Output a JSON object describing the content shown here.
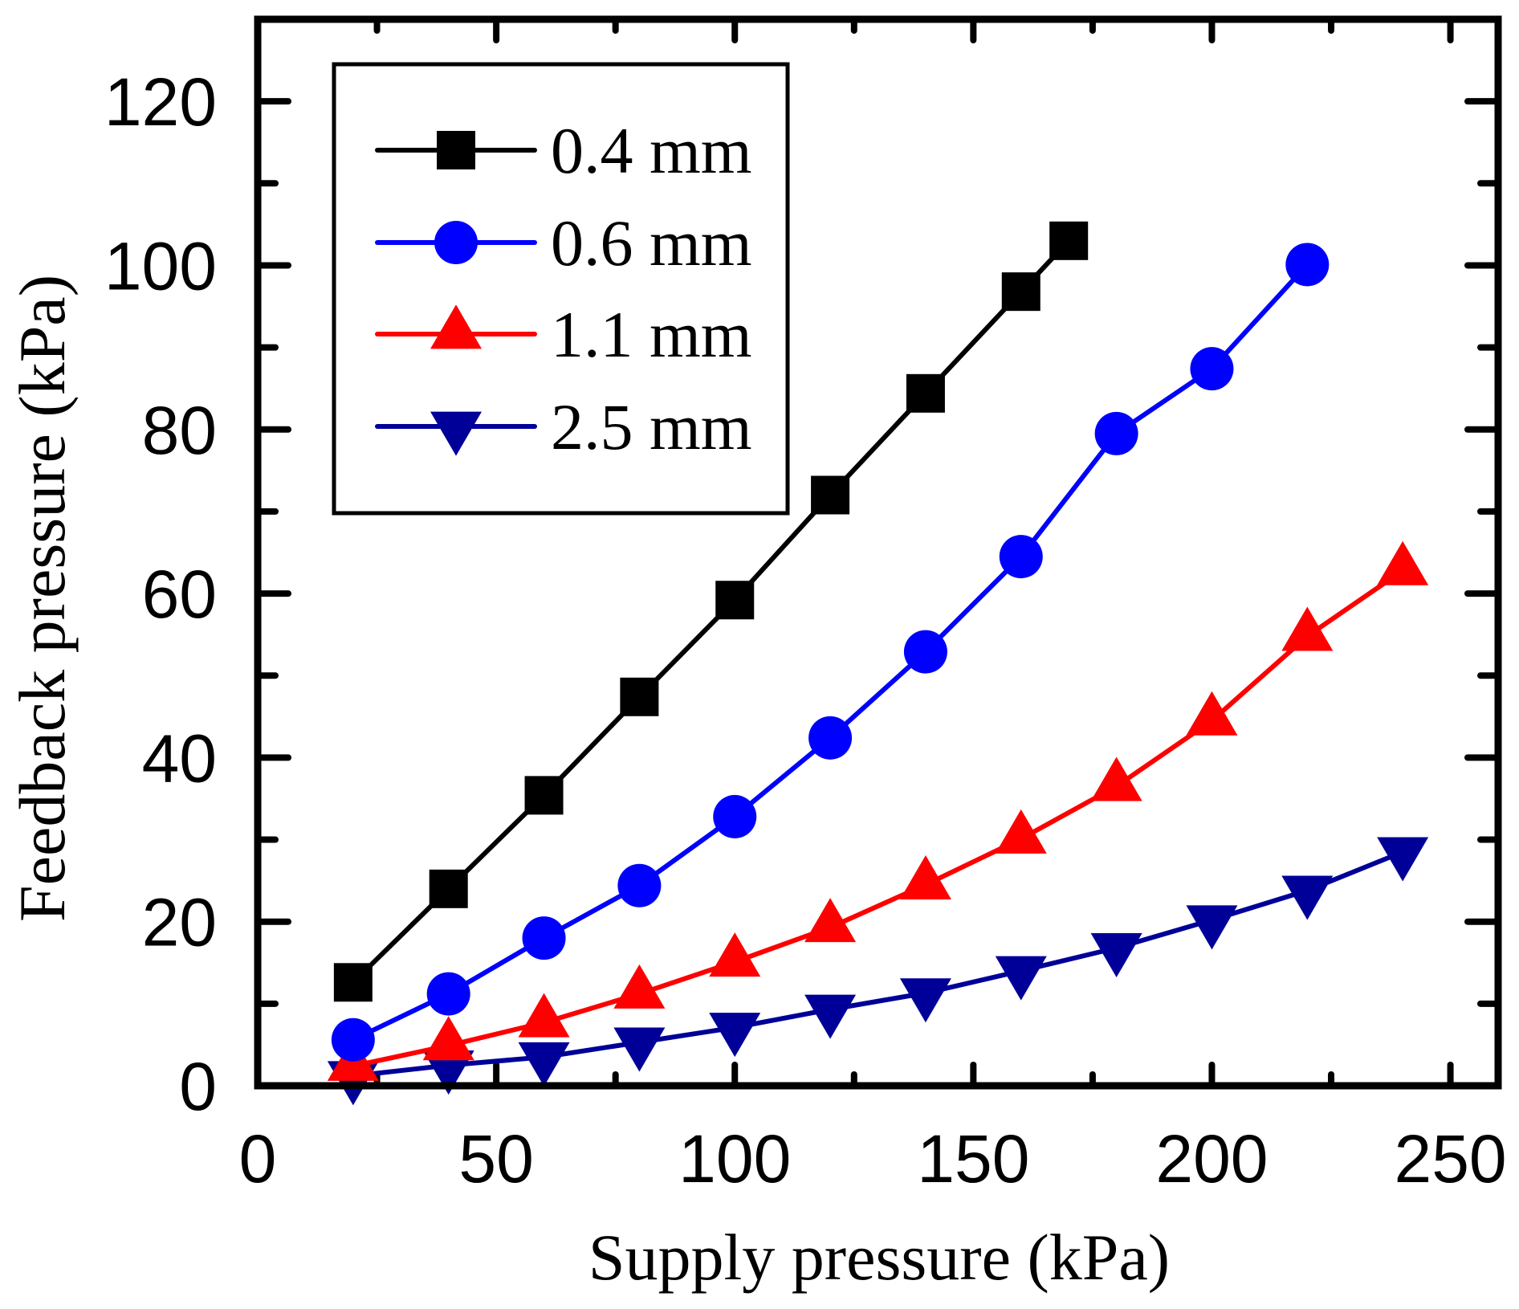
{
  "chart_data": {
    "type": "line",
    "title": "",
    "xlabel": "Supply pressure (kPa)",
    "ylabel": "Feedback pressure (kPa)",
    "xlim": [
      0,
      260
    ],
    "ylim": [
      0,
      130
    ],
    "x_major_ticks": [
      0,
      50,
      100,
      150,
      200,
      250
    ],
    "x_minor_step": 25,
    "y_major_ticks": [
      0,
      20,
      40,
      60,
      80,
      100,
      120
    ],
    "y_minor_step": 10,
    "x_tick_labels": [
      "0",
      "50",
      "100",
      "150",
      "200",
      "250"
    ],
    "y_tick_labels": [
      "0",
      "20",
      "40",
      "60",
      "80",
      "100",
      "120"
    ],
    "grid": false,
    "legend_position": "top-left",
    "series": [
      {
        "name": "0.4 mm",
        "color": "#000000",
        "marker": "square",
        "x": [
          20,
          40,
          60,
          80,
          100,
          120,
          140,
          160,
          170
        ],
        "y": [
          12.6,
          24.0,
          35.4,
          47.4,
          59.2,
          72.0,
          84.4,
          96.8,
          103.0
        ]
      },
      {
        "name": "0.6 mm",
        "color": "#0000FF",
        "marker": "circle",
        "x": [
          20,
          40,
          60,
          80,
          100,
          120,
          140,
          160,
          180,
          200,
          220
        ],
        "y": [
          5.6,
          11.2,
          18.0,
          24.4,
          32.8,
          42.4,
          52.9,
          64.5,
          79.5,
          87.4,
          100.1
        ]
      },
      {
        "name": "1.1 mm",
        "color": "#FF0000",
        "marker": "triangle-up",
        "x": [
          20,
          40,
          60,
          80,
          100,
          120,
          140,
          160,
          180,
          200,
          220,
          240
        ],
        "y": [
          2.4,
          4.9,
          7.7,
          11.2,
          15.1,
          19.3,
          24.5,
          30.1,
          36.5,
          44.5,
          54.8,
          62.8
        ]
      },
      {
        "name": "2.5 mm",
        "color": "#000099",
        "marker": "triangle-down",
        "x": [
          20,
          40,
          60,
          80,
          100,
          120,
          140,
          160,
          180,
          200,
          220,
          240
        ],
        "y": [
          1.2,
          2.5,
          3.5,
          5.3,
          7.1,
          9.3,
          11.3,
          14.0,
          16.8,
          20.2,
          23.8,
          28.5
        ]
      }
    ]
  }
}
